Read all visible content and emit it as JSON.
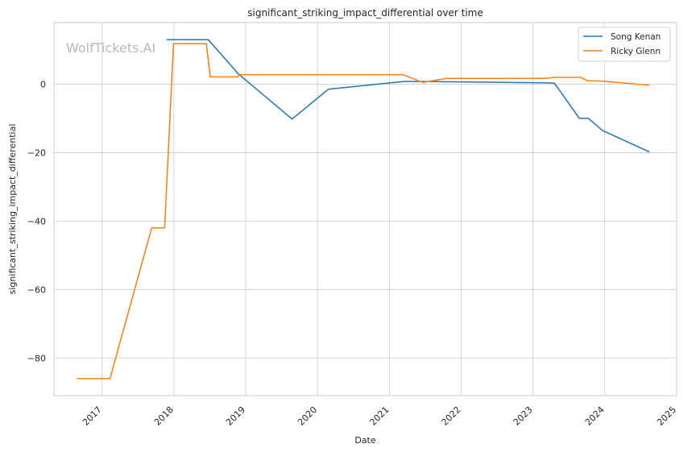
{
  "chart_data": {
    "type": "line",
    "title": "significant_striking_impact_differential over time",
    "xlabel": "Date",
    "ylabel": "significant_striking_impact_differential",
    "watermark": "WolfTickets.AI",
    "x_ticks": [
      "2017",
      "2018",
      "2019",
      "2020",
      "2021",
      "2022",
      "2023",
      "2024",
      "2025"
    ],
    "y_ticks": [
      0,
      -20,
      -40,
      -60,
      -80
    ],
    "xlim": [
      "2016-05-01",
      "2025-01-01"
    ],
    "ylim": [
      -91,
      18
    ],
    "grid": true,
    "legend_position": "top-right",
    "series": [
      {
        "name": "Song Kenan",
        "color": "#1f77b4",
        "points": [
          [
            "2017-11-25",
            13.0
          ],
          [
            "2018-06-25",
            13.0
          ],
          [
            "2018-11-25",
            3.0
          ],
          [
            "2019-08-25",
            -10.2
          ],
          [
            "2020-02-25",
            -1.5
          ],
          [
            "2021-03-15",
            0.8
          ],
          [
            "2021-06-15",
            0.8
          ],
          [
            "2023-03-01",
            0.4
          ],
          [
            "2023-04-20",
            0.3
          ],
          [
            "2023-08-25",
            -10.0
          ],
          [
            "2023-10-10",
            -10.0
          ],
          [
            "2023-12-20",
            -13.5
          ],
          [
            "2024-08-15",
            -19.8
          ]
        ]
      },
      {
        "name": "Ricky Glenn",
        "color": "#ff7f0e",
        "points": [
          [
            "2016-08-25",
            -86.0
          ],
          [
            "2017-02-10",
            -86.0
          ],
          [
            "2017-09-10",
            -42.0
          ],
          [
            "2017-11-15",
            -42.0
          ],
          [
            "2017-12-30",
            11.8
          ],
          [
            "2018-06-15",
            11.8
          ],
          [
            "2018-07-05",
            2.1
          ],
          [
            "2018-11-20",
            2.1
          ],
          [
            "2018-12-01",
            2.8
          ],
          [
            "2021-03-10",
            2.8
          ],
          [
            "2021-06-20",
            0.5
          ],
          [
            "2021-10-20",
            1.7
          ],
          [
            "2023-03-05",
            1.7
          ],
          [
            "2023-04-20",
            2.0
          ],
          [
            "2023-09-01",
            2.0
          ],
          [
            "2023-10-05",
            1.0
          ],
          [
            "2023-12-20",
            0.9
          ],
          [
            "2024-08-15",
            -0.3
          ]
        ]
      }
    ]
  }
}
